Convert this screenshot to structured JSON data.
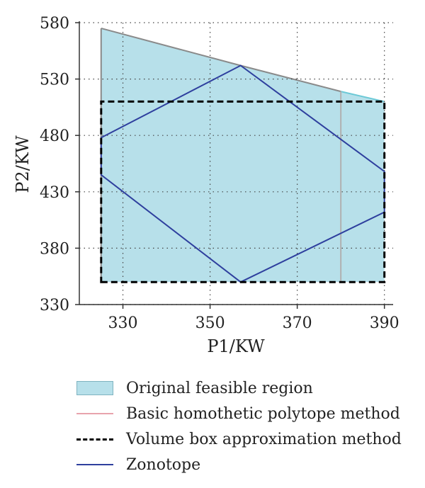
{
  "chart_data": {
    "type": "area",
    "xlabel": "P1/KW",
    "ylabel": "P2/KW",
    "xlim": [
      320,
      392
    ],
    "ylim": [
      330,
      580
    ],
    "xticks": [
      330,
      350,
      370,
      390
    ],
    "yticks": [
      330,
      380,
      430,
      480,
      530,
      580
    ],
    "grid": true,
    "legend_position": "bottom",
    "colors": {
      "feasible_fill": "#b7e0ea",
      "feasible_edge": "#8a8a8a",
      "feasible_edge_right": "#6cc9d6",
      "homothetic": "#b0b0b0",
      "volume_box": "#000000",
      "zonotope": "#2e3f9e"
    },
    "series": [
      {
        "name": "Original feasible region",
        "kind": "polygon",
        "points": [
          [
            325,
            575
          ],
          [
            325,
            350
          ],
          [
            390,
            350
          ],
          [
            390,
            510
          ],
          [
            380,
            519
          ],
          [
            357,
            542
          ]
        ]
      },
      {
        "name": "Basic homothetic polytope method",
        "kind": "line",
        "points": [
          [
            380,
            519
          ],
          [
            380,
            350
          ]
        ]
      },
      {
        "name": "Volume box approximation method",
        "kind": "rectangle",
        "points": [
          [
            325,
            350
          ],
          [
            390,
            350
          ],
          [
            390,
            510
          ],
          [
            325,
            510
          ]
        ]
      },
      {
        "name": "Zonotope",
        "kind": "polygon",
        "points": [
          [
            325,
            478
          ],
          [
            357,
            542
          ],
          [
            390,
            448
          ],
          [
            390,
            412
          ],
          [
            357,
            350
          ],
          [
            325,
            445
          ]
        ]
      }
    ]
  },
  "legend": {
    "items": [
      {
        "label": "Original feasible region"
      },
      {
        "label": "Basic homothetic polytope method"
      },
      {
        "label": "Volume box approximation method"
      },
      {
        "label": "Zonotope"
      }
    ]
  }
}
